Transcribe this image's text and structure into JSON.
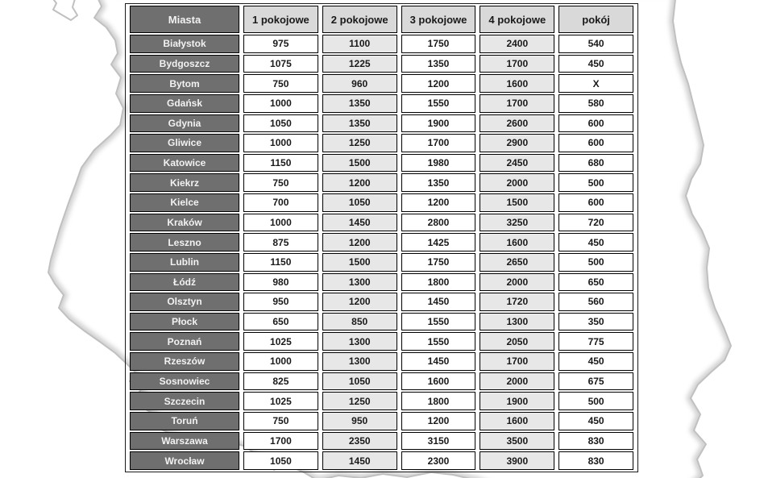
{
  "background": {
    "map_icon": "poland-outline-map"
  },
  "colors": {
    "header_dark_bg": "#6f6f6f",
    "header_light_bg": "#d9d9d9",
    "cell_alt_bg": "#e7e7e7",
    "cell_bg": "#ffffff",
    "border": "#000000",
    "map_outline": "#c0c0c0",
    "header_dark_text": "#f2f2f2"
  },
  "table": {
    "columns": [
      "Miasta",
      "1 pokojowe",
      "2 pokojowe",
      "3 pokojowe",
      "4 pokojowe",
      "pokój"
    ],
    "rows": [
      [
        "Białystok",
        "975",
        "1100",
        "1750",
        "2400",
        "540"
      ],
      [
        "Bydgoszcz",
        "1075",
        "1225",
        "1350",
        "1700",
        "450"
      ],
      [
        "Bytom",
        "750",
        "960",
        "1200",
        "1600",
        "X"
      ],
      [
        "Gdańsk",
        "1000",
        "1350",
        "1550",
        "1700",
        "580"
      ],
      [
        "Gdynia",
        "1050",
        "1350",
        "1900",
        "2600",
        "600"
      ],
      [
        "Gliwice",
        "1000",
        "1250",
        "1700",
        "2900",
        "600"
      ],
      [
        "Katowice",
        "1150",
        "1500",
        "1980",
        "2450",
        "680"
      ],
      [
        "Kiekrz",
        "750",
        "1200",
        "1350",
        "2000",
        "500"
      ],
      [
        "Kielce",
        "700",
        "1050",
        "1200",
        "1500",
        "600"
      ],
      [
        "Kraków",
        "1000",
        "1450",
        "2800",
        "3250",
        "720"
      ],
      [
        "Leszno",
        "875",
        "1200",
        "1425",
        "1600",
        "450"
      ],
      [
        "Lublin",
        "1150",
        "1500",
        "1750",
        "2650",
        "500"
      ],
      [
        "Łódź",
        "980",
        "1300",
        "1800",
        "2000",
        "650"
      ],
      [
        "Olsztyn",
        "950",
        "1200",
        "1450",
        "1720",
        "560"
      ],
      [
        "Płock",
        "650",
        "850",
        "1550",
        "1300",
        "350"
      ],
      [
        "Poznań",
        "1025",
        "1300",
        "1550",
        "2050",
        "775"
      ],
      [
        "Rzeszów",
        "1000",
        "1300",
        "1450",
        "1700",
        "450"
      ],
      [
        "Sosnowiec",
        "825",
        "1050",
        "1600",
        "2000",
        "675"
      ],
      [
        "Szczecin",
        "1025",
        "1250",
        "1800",
        "1900",
        "500"
      ],
      [
        "Toruń",
        "750",
        "950",
        "1200",
        "1600",
        "450"
      ],
      [
        "Warszawa",
        "1700",
        "2350",
        "3150",
        "3500",
        "830"
      ],
      [
        "Wrocław",
        "1050",
        "1450",
        "2300",
        "3900",
        "830"
      ]
    ]
  }
}
